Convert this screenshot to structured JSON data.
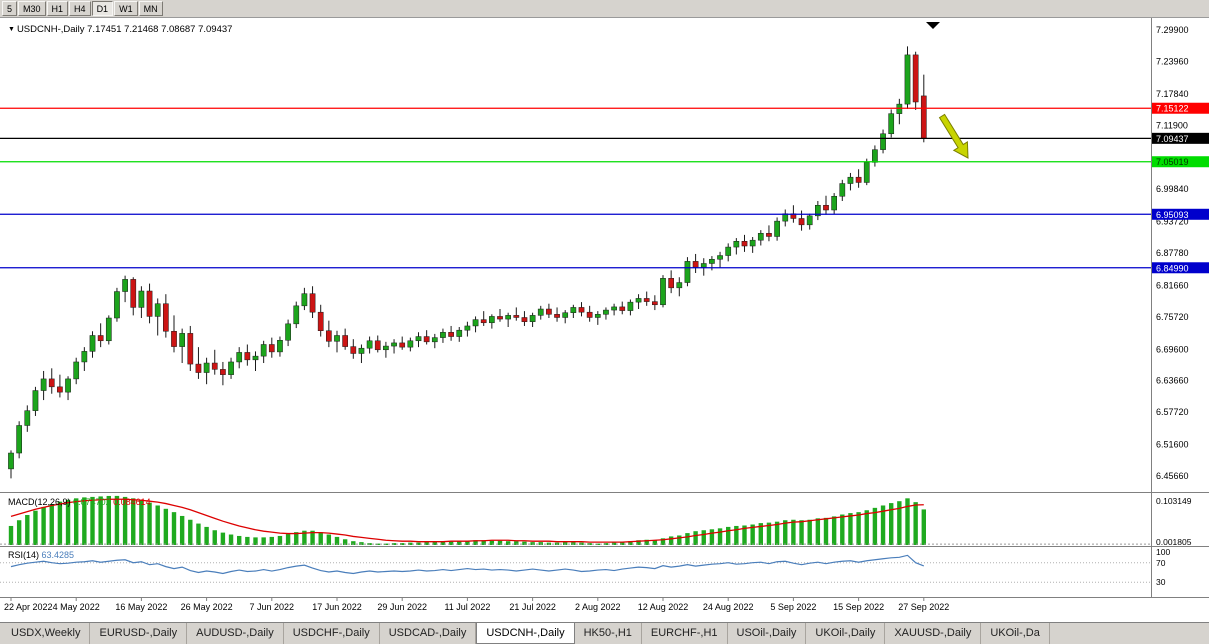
{
  "toolbar": {
    "timeframes": [
      {
        "label": "5",
        "active": false
      },
      {
        "label": "M30",
        "active": false
      },
      {
        "label": "H1",
        "active": false
      },
      {
        "label": "H4",
        "active": false
      },
      {
        "label": "D1",
        "active": true
      },
      {
        "label": "W1",
        "active": false
      },
      {
        "label": "MN",
        "active": false
      }
    ]
  },
  "chart": {
    "title_symbol": "USDCNH-,Daily",
    "title_ohlc": "7.17451 7.21468 7.08687 7.09437",
    "macd_label": "MACD(12,26,9)",
    "macd_value_main": "0.074702",
    "macd_value_signal": "0.084614",
    "rsi_label": "RSI(14)",
    "rsi_value": "63.4285"
  },
  "chart_data": {
    "type": "candlestick",
    "symbol": "USDCNH",
    "timeframe": "Daily",
    "price_min": 6.4566,
    "price_max": 7.299,
    "y_ticks": [
      "7.29900",
      "7.23960",
      "7.17840",
      "7.11900",
      "6.99840",
      "6.93720",
      "6.87780",
      "6.81660",
      "6.75720",
      "6.69600",
      "6.63660",
      "6.57720",
      "6.51600",
      "6.45660"
    ],
    "price_lines": [
      {
        "value": 7.15122,
        "label": "7.15122",
        "color": "#ff0000",
        "label_bg": "#ff0000",
        "label_fg": "#ffffff"
      },
      {
        "value": 7.09437,
        "label": "7.09437",
        "color": "#000000",
        "label_bg": "#000000",
        "label_fg": "#ffffff"
      },
      {
        "value": 7.05019,
        "label": "7.05019",
        "color": "#00dd00",
        "label_bg": "#00dd00",
        "label_fg": "#003300"
      },
      {
        "value": 6.95093,
        "label": "6.95093",
        "color": "#0000cc",
        "label_bg": "#0000cc",
        "label_fg": "#ffffff"
      },
      {
        "value": 6.8499,
        "label": "6.84990",
        "color": "#0000cc",
        "label_bg": "#0000cc",
        "label_fg": "#ffffff"
      }
    ],
    "x_labels": [
      "22 Apr 2022",
      "4 May 2022",
      "16 May 2022",
      "26 May 2022",
      "7 Jun 2022",
      "17 Jun 2022",
      "29 Jun 2022",
      "11 Jul 2022",
      "21 Jul 2022",
      "2 Aug 2022",
      "12 Aug 2022",
      "24 Aug 2022",
      "5 Sep 2022",
      "15 Sep 2022",
      "27 Sep 2022"
    ],
    "x_label_step": 8,
    "candles": [
      [
        6.47,
        6.505,
        6.452,
        6.5
      ],
      [
        6.5,
        6.56,
        6.49,
        6.552
      ],
      [
        6.552,
        6.59,
        6.54,
        6.58
      ],
      [
        6.58,
        6.625,
        6.57,
        6.618
      ],
      [
        6.618,
        6.655,
        6.6,
        6.64
      ],
      [
        6.64,
        6.66,
        6.612,
        6.625
      ],
      [
        6.625,
        6.648,
        6.605,
        6.615
      ],
      [
        6.615,
        6.645,
        6.6,
        6.64
      ],
      [
        6.64,
        6.68,
        6.63,
        6.672
      ],
      [
        6.672,
        6.7,
        6.655,
        6.692
      ],
      [
        6.692,
        6.73,
        6.68,
        6.722
      ],
      [
        6.722,
        6.745,
        6.7,
        6.712
      ],
      [
        6.712,
        6.76,
        6.705,
        6.755
      ],
      [
        6.755,
        6.812,
        6.748,
        6.805
      ],
      [
        6.805,
        6.835,
        6.785,
        6.828
      ],
      [
        6.828,
        6.832,
        6.76,
        6.775
      ],
      [
        6.775,
        6.815,
        6.755,
        6.806
      ],
      [
        6.806,
        6.82,
        6.745,
        6.758
      ],
      [
        6.758,
        6.792,
        6.722,
        6.782
      ],
      [
        6.782,
        6.8,
        6.718,
        6.73
      ],
      [
        6.73,
        6.76,
        6.69,
        6.701
      ],
      [
        6.701,
        6.735,
        6.67,
        6.726
      ],
      [
        6.726,
        6.74,
        6.655,
        6.668
      ],
      [
        6.668,
        6.7,
        6.64,
        6.652
      ],
      [
        6.652,
        6.68,
        6.63,
        6.67
      ],
      [
        6.67,
        6.695,
        6.648,
        6.658
      ],
      [
        6.658,
        6.672,
        6.628,
        6.648
      ],
      [
        6.648,
        6.68,
        6.64,
        6.672
      ],
      [
        6.672,
        6.7,
        6.66,
        6.69
      ],
      [
        6.69,
        6.705,
        6.665,
        6.676
      ],
      [
        6.676,
        6.692,
        6.655,
        6.683
      ],
      [
        6.683,
        6.712,
        6.67,
        6.705
      ],
      [
        6.705,
        6.718,
        6.68,
        6.691
      ],
      [
        6.691,
        6.72,
        6.682,
        6.713
      ],
      [
        6.713,
        6.752,
        6.702,
        6.744
      ],
      [
        6.744,
        6.786,
        6.736,
        6.778
      ],
      [
        6.778,
        6.812,
        6.77,
        6.801
      ],
      [
        6.801,
        6.815,
        6.755,
        6.766
      ],
      [
        6.766,
        6.78,
        6.72,
        6.731
      ],
      [
        6.731,
        6.75,
        6.7,
        6.711
      ],
      [
        6.711,
        6.731,
        6.69,
        6.722
      ],
      [
        6.722,
        6.735,
        6.695,
        6.701
      ],
      [
        6.701,
        6.715,
        6.678,
        6.688
      ],
      [
        6.688,
        6.705,
        6.67,
        6.698
      ],
      [
        6.698,
        6.72,
        6.688,
        6.712
      ],
      [
        6.712,
        6.722,
        6.69,
        6.695
      ],
      [
        6.695,
        6.71,
        6.68,
        6.702
      ],
      [
        6.702,
        6.715,
        6.688,
        6.708
      ],
      [
        6.708,
        6.72,
        6.695,
        6.7
      ],
      [
        6.7,
        6.718,
        6.692,
        6.712
      ],
      [
        6.712,
        6.728,
        6.7,
        6.72
      ],
      [
        6.72,
        6.732,
        6.705,
        6.71
      ],
      [
        6.71,
        6.725,
        6.698,
        6.718
      ],
      [
        6.718,
        6.735,
        6.708,
        6.728
      ],
      [
        6.728,
        6.74,
        6.712,
        6.72
      ],
      [
        6.72,
        6.738,
        6.71,
        6.732
      ],
      [
        6.732,
        6.748,
        6.72,
        6.74
      ],
      [
        6.74,
        6.758,
        6.728,
        6.752
      ],
      [
        6.752,
        6.768,
        6.74,
        6.746
      ],
      [
        6.746,
        6.762,
        6.735,
        6.758
      ],
      [
        6.758,
        6.772,
        6.748,
        6.753
      ],
      [
        6.753,
        6.765,
        6.738,
        6.76
      ],
      [
        6.76,
        6.775,
        6.75,
        6.756
      ],
      [
        6.756,
        6.768,
        6.74,
        6.748
      ],
      [
        6.748,
        6.765,
        6.738,
        6.76
      ],
      [
        6.76,
        6.778,
        6.752,
        6.772
      ],
      [
        6.772,
        6.782,
        6.755,
        6.762
      ],
      [
        6.762,
        6.775,
        6.748,
        6.756
      ],
      [
        6.756,
        6.77,
        6.745,
        6.765
      ],
      [
        6.765,
        6.78,
        6.755,
        6.775
      ],
      [
        6.775,
        6.785,
        6.758,
        6.766
      ],
      [
        6.766,
        6.778,
        6.748,
        6.756
      ],
      [
        6.756,
        6.768,
        6.742,
        6.762
      ],
      [
        6.762,
        6.775,
        6.752,
        6.77
      ],
      [
        6.77,
        6.782,
        6.76,
        6.776
      ],
      [
        6.776,
        6.786,
        6.762,
        6.769
      ],
      [
        6.769,
        6.79,
        6.76,
        6.785
      ],
      [
        6.785,
        6.8,
        6.772,
        6.792
      ],
      [
        6.792,
        6.805,
        6.778,
        6.786
      ],
      [
        6.786,
        6.798,
        6.77,
        6.78
      ],
      [
        6.78,
        6.836,
        6.775,
        6.83
      ],
      [
        6.83,
        6.845,
        6.802,
        6.812
      ],
      [
        6.812,
        6.832,
        6.796,
        6.822
      ],
      [
        6.822,
        6.87,
        6.815,
        6.862
      ],
      [
        6.862,
        6.876,
        6.84,
        6.851
      ],
      [
        6.851,
        6.868,
        6.835,
        6.858
      ],
      [
        6.858,
        6.872,
        6.845,
        6.866
      ],
      [
        6.866,
        6.88,
        6.85,
        6.873
      ],
      [
        6.873,
        6.896,
        6.862,
        6.889
      ],
      [
        6.889,
        6.906,
        6.875,
        6.9
      ],
      [
        6.9,
        6.912,
        6.88,
        6.891
      ],
      [
        6.891,
        6.908,
        6.878,
        6.902
      ],
      [
        6.902,
        6.921,
        6.892,
        6.915
      ],
      [
        6.915,
        6.93,
        6.9,
        6.909
      ],
      [
        6.909,
        6.945,
        6.901,
        6.938
      ],
      [
        6.938,
        6.96,
        6.928,
        6.952
      ],
      [
        6.952,
        6.968,
        6.935,
        6.943
      ],
      [
        6.943,
        6.958,
        6.92,
        6.931
      ],
      [
        6.931,
        6.952,
        6.922,
        6.948
      ],
      [
        6.948,
        6.976,
        6.94,
        6.968
      ],
      [
        6.968,
        6.986,
        6.95,
        6.959
      ],
      [
        6.959,
        6.991,
        6.951,
        6.985
      ],
      [
        6.985,
        7.016,
        6.976,
        7.009
      ],
      [
        7.009,
        7.029,
        6.996,
        7.021
      ],
      [
        7.021,
        7.036,
        7.001,
        7.011
      ],
      [
        7.011,
        7.056,
        7.006,
        7.049
      ],
      [
        7.049,
        7.081,
        7.041,
        7.073
      ],
      [
        7.073,
        7.111,
        7.066,
        7.103
      ],
      [
        7.103,
        7.149,
        7.096,
        7.141
      ],
      [
        7.141,
        7.169,
        7.121,
        7.159
      ],
      [
        7.159,
        7.268,
        7.15,
        7.252
      ],
      [
        7.252,
        7.258,
        7.148,
        7.163
      ],
      [
        7.17451,
        7.21468,
        7.08687,
        7.09437
      ]
    ],
    "macd": {
      "axis_max": "0.103149",
      "axis_min": "0.001805",
      "hist": [
        0.04,
        0.052,
        0.063,
        0.072,
        0.08,
        0.086,
        0.091,
        0.095,
        0.098,
        0.1,
        0.101,
        0.102,
        0.103,
        0.1031,
        0.101,
        0.098,
        0.094,
        0.089,
        0.083,
        0.076,
        0.069,
        0.061,
        0.053,
        0.045,
        0.038,
        0.031,
        0.026,
        0.022,
        0.019,
        0.017,
        0.016,
        0.016,
        0.017,
        0.019,
        0.023,
        0.027,
        0.03,
        0.03,
        0.027,
        0.022,
        0.017,
        0.012,
        0.008,
        0.006,
        0.004,
        0.003,
        0.003,
        0.004,
        0.004,
        0.005,
        0.005,
        0.006,
        0.006,
        0.007,
        0.008,
        0.008,
        0.009,
        0.01,
        0.01,
        0.009,
        0.009,
        0.008,
        0.008,
        0.007,
        0.006,
        0.006,
        0.005,
        0.005,
        0.006,
        0.006,
        0.005,
        0.004,
        0.003,
        0.004,
        0.005,
        0.006,
        0.008,
        0.01,
        0.011,
        0.01,
        0.014,
        0.018,
        0.02,
        0.025,
        0.029,
        0.031,
        0.033,
        0.035,
        0.038,
        0.04,
        0.041,
        0.043,
        0.046,
        0.047,
        0.049,
        0.052,
        0.053,
        0.052,
        0.053,
        0.056,
        0.057,
        0.06,
        0.064,
        0.067,
        0.069,
        0.073,
        0.078,
        0.083,
        0.088,
        0.092,
        0.098,
        0.09,
        0.0747
      ],
      "signal": [
        0.06,
        0.065,
        0.07,
        0.075,
        0.079,
        0.083,
        0.086,
        0.089,
        0.091,
        0.093,
        0.094,
        0.095,
        0.096,
        0.096,
        0.096,
        0.095,
        0.094,
        0.092,
        0.09,
        0.087,
        0.083,
        0.079,
        0.074,
        0.068,
        0.062,
        0.056,
        0.05,
        0.045,
        0.04,
        0.036,
        0.032,
        0.029,
        0.027,
        0.025,
        0.024,
        0.024,
        0.025,
        0.026,
        0.026,
        0.025,
        0.023,
        0.021,
        0.018,
        0.016,
        0.014,
        0.012,
        0.01,
        0.009,
        0.008,
        0.008,
        0.007,
        0.007,
        0.007,
        0.007,
        0.008,
        0.008,
        0.008,
        0.009,
        0.009,
        0.01,
        0.01,
        0.01,
        0.009,
        0.009,
        0.008,
        0.008,
        0.008,
        0.007,
        0.007,
        0.007,
        0.007,
        0.006,
        0.006,
        0.006,
        0.006,
        0.006,
        0.007,
        0.008,
        0.009,
        0.01,
        0.011,
        0.013,
        0.015,
        0.017,
        0.02,
        0.022,
        0.025,
        0.027,
        0.03,
        0.032,
        0.035,
        0.037,
        0.039,
        0.041,
        0.043,
        0.046,
        0.048,
        0.049,
        0.051,
        0.053,
        0.055,
        0.057,
        0.059,
        0.061,
        0.063,
        0.066,
        0.068,
        0.071,
        0.074,
        0.077,
        0.081,
        0.084,
        0.0846
      ]
    },
    "rsi": {
      "levels": [
        "100",
        "70",
        "30"
      ],
      "values": [
        62,
        66,
        69,
        71,
        73,
        70,
        68,
        69,
        71,
        72,
        74,
        71,
        73,
        75,
        76,
        70,
        72,
        66,
        68,
        62,
        58,
        61,
        54,
        50,
        53,
        51,
        48,
        52,
        55,
        52,
        53,
        56,
        53,
        56,
        60,
        63,
        65,
        59,
        54,
        51,
        53,
        50,
        48,
        51,
        53,
        51,
        52,
        53,
        52,
        53,
        55,
        53,
        54,
        56,
        54,
        56,
        58,
        56,
        57,
        55,
        56,
        55,
        53,
        55,
        57,
        55,
        53,
        55,
        57,
        55,
        52,
        53,
        55,
        56,
        54,
        57,
        59,
        61,
        60,
        58,
        64,
        61,
        63,
        66,
        63,
        65,
        67,
        68,
        70,
        67,
        68,
        70,
        71,
        68,
        72,
        73,
        69,
        66,
        69,
        71,
        68,
        71,
        73,
        74,
        71,
        74,
        76,
        78,
        80,
        81,
        85,
        70,
        63.4
      ]
    },
    "colors": {
      "up": "#1ca41c",
      "down": "#cc1414",
      "wick": "#1a1a1a",
      "macd_hist": "#1faa1f",
      "macd_signal": "#dd0000",
      "rsi_line": "#4a7ebb",
      "arrow_fill": "#c8d400",
      "arrow_stroke": "#7a7f00"
    },
    "annotations": [
      "yellow-down-right-arrow",
      "black-down-triangle-marker"
    ]
  },
  "tabs": [
    {
      "label": "USDX,Weekly",
      "active": false
    },
    {
      "label": "EURUSD-,Daily",
      "active": false
    },
    {
      "label": "AUDUSD-,Daily",
      "active": false
    },
    {
      "label": "USDCHF-,Daily",
      "active": false
    },
    {
      "label": "USDCAD-,Daily",
      "active": false
    },
    {
      "label": "USDCNH-,Daily",
      "active": true
    },
    {
      "label": "HK50-,H1",
      "active": false
    },
    {
      "label": "EURCHF-,H1",
      "active": false
    },
    {
      "label": "USOil-,Daily",
      "active": false
    },
    {
      "label": "UKOil-,Daily",
      "active": false
    },
    {
      "label": "XAUUSD-,Daily",
      "active": false
    },
    {
      "label": "UKOil-,Da",
      "active": false
    }
  ]
}
